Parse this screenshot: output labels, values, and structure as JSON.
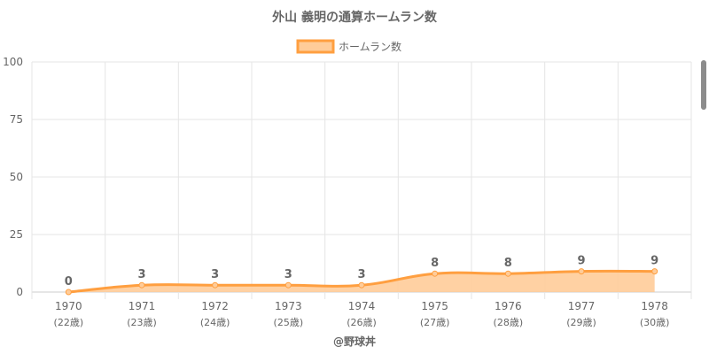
{
  "chart_data": {
    "type": "area",
    "title": "外山 義明の通算ホームラン数",
    "legend": {
      "label": "ホームラン数",
      "placement": "top-center"
    },
    "categories": [
      "1970",
      "1971",
      "1972",
      "1973",
      "1974",
      "1975",
      "1976",
      "1977",
      "1978"
    ],
    "sub_labels": [
      "(22歳)",
      "(23歳)",
      "(24歳)",
      "(25歳)",
      "(26歳)",
      "(27歳)",
      "(28歳)",
      "(29歳)",
      "(30歳)"
    ],
    "series": [
      {
        "name": "ホームラン数",
        "values": [
          0,
          3,
          3,
          3,
          3,
          8,
          8,
          9,
          9
        ]
      }
    ],
    "ylim": [
      0,
      100
    ],
    "yticks": [
      0,
      25,
      50,
      75,
      100
    ],
    "grid": true,
    "colors": {
      "line": "#ff9f40",
      "fill": "#ffcc99",
      "grid": "#e5e5e5",
      "axis": "#cccccc"
    }
  },
  "watermark": "@野球丼"
}
